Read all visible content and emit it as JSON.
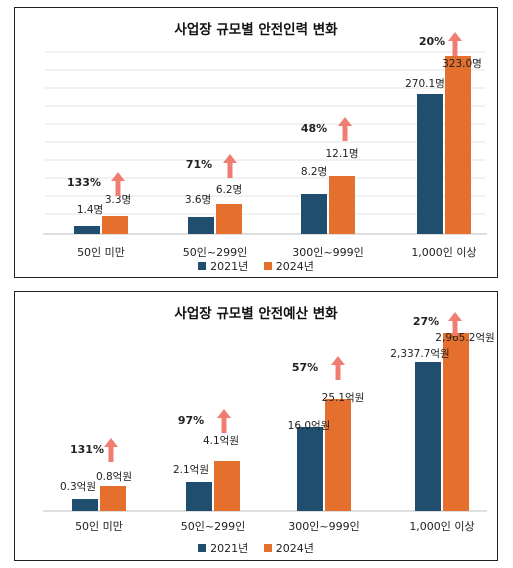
{
  "colors": {
    "series_2021": "#1f4e6f",
    "series_2024": "#e56f2c",
    "arrow": "#f07d72",
    "grid": "#e3e3e3"
  },
  "chart_data": [
    {
      "type": "bar",
      "title": "사업장 규모별 안전인력 변화",
      "categories": [
        "50인 미만",
        "50인~299인",
        "300인~999인",
        "1,000인 이상"
      ],
      "series": [
        {
          "name": "2021년",
          "values": [
            1.4,
            3.6,
            8.2,
            270.1
          ],
          "labels": [
            "1.4명",
            "3.6명",
            "8.2명",
            "270.1명"
          ]
        },
        {
          "name": "2024년",
          "values": [
            3.3,
            6.2,
            12.1,
            323.0
          ],
          "labels": [
            "3.3명",
            "6.2명",
            "12.1명",
            "323.0명"
          ]
        }
      ],
      "increase_labels": [
        "133%",
        "71%",
        "48%",
        "20%"
      ],
      "legend_position": "bottom",
      "grid": true
    },
    {
      "type": "bar",
      "title": "사업장 규모별 안전예산 변화",
      "categories": [
        "50인 미만",
        "50인~299인",
        "300인~999인",
        "1,000인 이상"
      ],
      "series": [
        {
          "name": "2021년",
          "values": [
            0.3,
            2.1,
            16.0,
            2337.7
          ],
          "labels": [
            "0.3억원",
            "2.1억원",
            "16.0억원",
            "2,337.7억원"
          ]
        },
        {
          "name": "2024년",
          "values": [
            0.8,
            4.1,
            25.1,
            2965.2
          ],
          "labels": [
            "0.8억원",
            "4.1억원",
            "25.1억원",
            "2,965.2억원"
          ]
        }
      ],
      "increase_labels": [
        "131%",
        "97%",
        "57%",
        "27%"
      ],
      "legend_position": "bottom",
      "grid": false
    }
  ]
}
